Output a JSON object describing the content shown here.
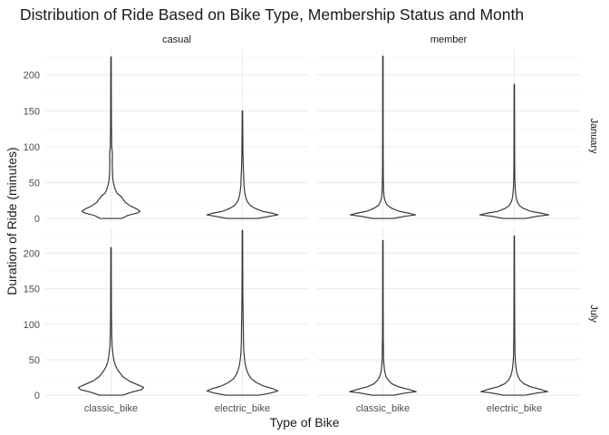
{
  "chart_data": {
    "type": "violin",
    "title": "Distribution of Ride Based on Bike Type, Membership Status and Month",
    "xlabel": "Type of Bike",
    "ylabel": "Duration of Ride (minutes)",
    "col_facets": [
      "casual",
      "member"
    ],
    "row_facets": [
      "January",
      "July"
    ],
    "categories": [
      "classic_bike",
      "electric_bike"
    ],
    "yticks": [
      0,
      50,
      100,
      150,
      200
    ],
    "ylim": [
      -5,
      235
    ],
    "grid": true,
    "panels": [
      {
        "col": "casual",
        "row": "January",
        "violins": [
          {
            "category": "classic_bike",
            "max": 225,
            "profile": [
              [
                0,
                0.3
              ],
              [
                4,
                0.45
              ],
              [
                8,
                0.75
              ],
              [
                10,
                0.8
              ],
              [
                13,
                0.72
              ],
              [
                17,
                0.55
              ],
              [
                22,
                0.4
              ],
              [
                27,
                0.33
              ],
              [
                31,
                0.27
              ],
              [
                35,
                0.17
              ],
              [
                40,
                0.12
              ],
              [
                45,
                0.09
              ],
              [
                50,
                0.065
              ],
              [
                55,
                0.05
              ],
              [
                65,
                0.04
              ],
              [
                80,
                0.035
              ],
              [
                90,
                0.04
              ],
              [
                100,
                0.02
              ],
              [
                130,
                0.012
              ],
              [
                170,
                0.009
              ],
              [
                225,
                0.006
              ]
            ]
          },
          {
            "category": "electric_bike",
            "max": 150,
            "profile": [
              [
                0,
                0.42
              ],
              [
                3,
                0.75
              ],
              [
                5,
                0.98
              ],
              [
                7,
                0.85
              ],
              [
                10,
                0.55
              ],
              [
                14,
                0.35
              ],
              [
                18,
                0.22
              ],
              [
                23,
                0.14
              ],
              [
                28,
                0.1
              ],
              [
                33,
                0.075
              ],
              [
                38,
                0.06
              ],
              [
                45,
                0.045
              ],
              [
                52,
                0.04
              ],
              [
                60,
                0.035
              ],
              [
                70,
                0.025
              ],
              [
                90,
                0.015
              ],
              [
                120,
                0.01
              ],
              [
                150,
                0.006
              ]
            ]
          }
        ]
      },
      {
        "col": "member",
        "row": "January",
        "violins": [
          {
            "category": "classic_bike",
            "max": 226,
            "profile": [
              [
                0,
                0.28
              ],
              [
                3,
                0.6
              ],
              [
                5,
                0.9
              ],
              [
                7,
                0.75
              ],
              [
                10,
                0.45
              ],
              [
                14,
                0.25
              ],
              [
                18,
                0.13
              ],
              [
                22,
                0.08
              ],
              [
                27,
                0.045
              ],
              [
                32,
                0.03
              ],
              [
                40,
                0.02
              ],
              [
                55,
                0.012
              ],
              [
                80,
                0.009
              ],
              [
                130,
                0.007
              ],
              [
                226,
                0.006
              ]
            ]
          },
          {
            "category": "electric_bike",
            "max": 187,
            "profile": [
              [
                0,
                0.3
              ],
              [
                3,
                0.62
              ],
              [
                5,
                0.95
              ],
              [
                7,
                0.78
              ],
              [
                10,
                0.45
              ],
              [
                14,
                0.25
              ],
              [
                18,
                0.14
              ],
              [
                23,
                0.085
              ],
              [
                28,
                0.055
              ],
              [
                34,
                0.04
              ],
              [
                42,
                0.025
              ],
              [
                55,
                0.015
              ],
              [
                80,
                0.01
              ],
              [
                130,
                0.008
              ],
              [
                187,
                0.006
              ]
            ]
          }
        ]
      },
      {
        "col": "casual",
        "row": "July",
        "violins": [
          {
            "category": "classic_bike",
            "max": 208,
            "profile": [
              [
                0,
                0.32
              ],
              [
                4,
                0.55
              ],
              [
                8,
                0.85
              ],
              [
                11,
                0.9
              ],
              [
                15,
                0.72
              ],
              [
                20,
                0.5
              ],
              [
                26,
                0.33
              ],
              [
                31,
                0.25
              ],
              [
                36,
                0.18
              ],
              [
                42,
                0.12
              ],
              [
                48,
                0.085
              ],
              [
                55,
                0.06
              ],
              [
                62,
                0.045
              ],
              [
                70,
                0.03
              ],
              [
                85,
                0.02
              ],
              [
                110,
                0.012
              ],
              [
                150,
                0.009
              ],
              [
                208,
                0.006
              ]
            ]
          },
          {
            "category": "electric_bike",
            "max": 232,
            "profile": [
              [
                0,
                0.45
              ],
              [
                3,
                0.78
              ],
              [
                6,
                0.98
              ],
              [
                9,
                0.85
              ],
              [
                13,
                0.58
              ],
              [
                18,
                0.38
              ],
              [
                23,
                0.25
              ],
              [
                29,
                0.17
              ],
              [
                35,
                0.12
              ],
              [
                42,
                0.085
              ],
              [
                50,
                0.06
              ],
              [
                58,
                0.045
              ],
              [
                66,
                0.035
              ],
              [
                80,
                0.028
              ],
              [
                95,
                0.025
              ],
              [
                110,
                0.02
              ],
              [
                140,
                0.012
              ],
              [
                180,
                0.009
              ],
              [
                232,
                0.006
              ]
            ]
          }
        ]
      },
      {
        "col": "member",
        "row": "July",
        "violins": [
          {
            "category": "classic_bike",
            "max": 218,
            "profile": [
              [
                0,
                0.3
              ],
              [
                3,
                0.62
              ],
              [
                5,
                0.92
              ],
              [
                8,
                0.72
              ],
              [
                12,
                0.42
              ],
              [
                16,
                0.25
              ],
              [
                21,
                0.15
              ],
              [
                26,
                0.09
              ],
              [
                32,
                0.055
              ],
              [
                38,
                0.04
              ],
              [
                46,
                0.025
              ],
              [
                55,
                0.018
              ],
              [
                80,
                0.011
              ],
              [
                130,
                0.008
              ],
              [
                218,
                0.006
              ]
            ]
          },
          {
            "category": "electric_bike",
            "max": 224,
            "profile": [
              [
                0,
                0.3
              ],
              [
                3,
                0.62
              ],
              [
                5,
                0.92
              ],
              [
                8,
                0.74
              ],
              [
                12,
                0.44
              ],
              [
                16,
                0.27
              ],
              [
                21,
                0.16
              ],
              [
                27,
                0.1
              ],
              [
                33,
                0.065
              ],
              [
                40,
                0.045
              ],
              [
                48,
                0.03
              ],
              [
                58,
                0.02
              ],
              [
                80,
                0.013
              ],
              [
                130,
                0.009
              ],
              [
                224,
                0.006
              ]
            ]
          }
        ]
      }
    ]
  }
}
